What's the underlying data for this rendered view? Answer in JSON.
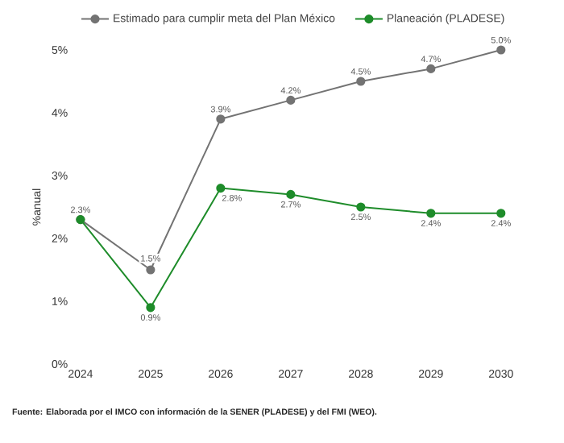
{
  "chart_data": {
    "type": "line",
    "ylabel": "%anual",
    "categories": [
      "2024",
      "2025",
      "2026",
      "2027",
      "2028",
      "2029",
      "2030"
    ],
    "series": [
      {
        "name": "Estimado para cumplir meta del Plan México",
        "color": "#737373",
        "values": [
          2.3,
          1.5,
          3.9,
          4.2,
          4.5,
          4.7,
          5.0
        ],
        "value_labels": [
          "2.3%",
          "1.5%",
          "3.9%",
          "4.2%",
          "4.5%",
          "4.7%",
          "5.0%"
        ]
      },
      {
        "name": "Planeación (PLADESE)",
        "color": "#1e8c2a",
        "values": [
          2.3,
          0.9,
          2.8,
          2.7,
          2.5,
          2.4,
          2.4
        ],
        "value_labels": [
          null,
          "0.9%",
          "2.8%",
          "2.7%",
          "2.5%",
          "2.4%",
          "2.4%"
        ]
      }
    ],
    "ylim": [
      0,
      5
    ],
    "yticks": [
      {
        "value": 0,
        "label": "0%"
      },
      {
        "value": 1,
        "label": "1%"
      },
      {
        "value": 2,
        "label": "2%"
      },
      {
        "value": 3,
        "label": "3%"
      },
      {
        "value": 4,
        "label": "4%"
      },
      {
        "value": 5,
        "label": "5%"
      }
    ],
    "grid": false,
    "legend": "top",
    "marker": "circle",
    "line_style": "solid",
    "annotations": [
      "**Fuente: Elaborada por el IMCO con información de la SENER (PLADESE) y del FMI (WEO).**"
    ]
  }
}
